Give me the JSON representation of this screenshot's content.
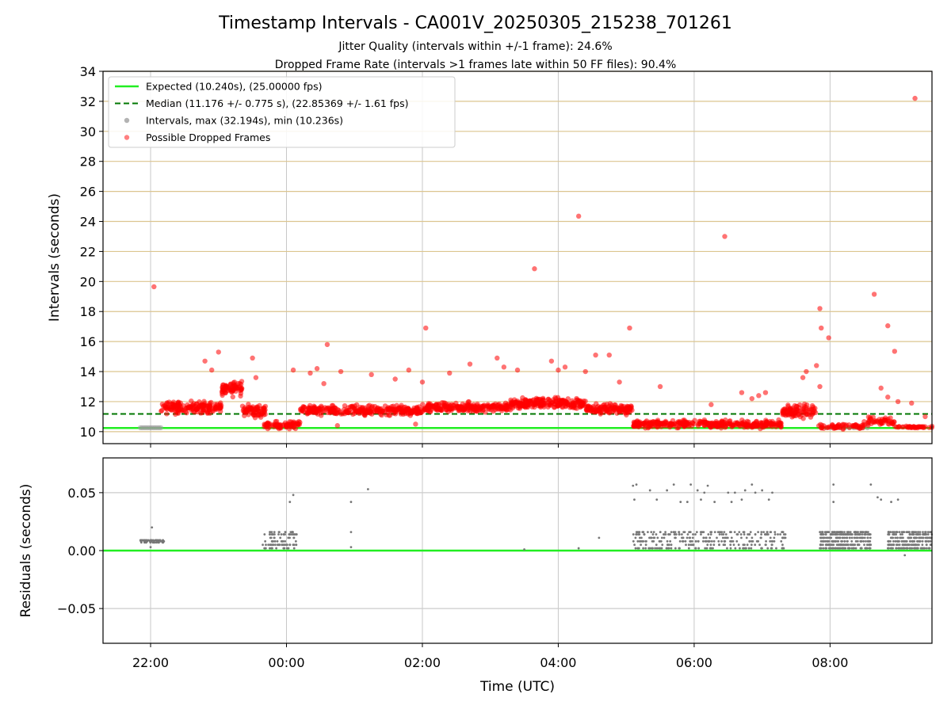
{
  "chart_data": {
    "type": "scatter",
    "title": "Timestamp Intervals - CA001V_20250305_215238_701261",
    "subtitles": [
      "Jitter Quality (intervals within +/-1 frame): 24.6%",
      "Dropped Frame Rate (intervals >1 frames late within 50 FF files): 90.4%"
    ],
    "xlabel": "Time (UTC)",
    "x_unit": "hours from 00:00 UTC (negative = previous evening)",
    "xlim": [
      -2.7,
      9.5
    ],
    "xticks": [
      {
        "value": -2,
        "label": "22:00"
      },
      {
        "value": 0,
        "label": "00:00"
      },
      {
        "value": 2,
        "label": "02:00"
      },
      {
        "value": 4,
        "label": "04:00"
      },
      {
        "value": 6,
        "label": "06:00"
      },
      {
        "value": 8,
        "label": "08:00"
      }
    ],
    "panels": [
      {
        "id": "intervals",
        "ylabel": "Intervals (seconds)",
        "ylim": [
          9.2,
          34
        ],
        "yticks": [
          10,
          12,
          14,
          16,
          18,
          20,
          22,
          24,
          26,
          28,
          30,
          32,
          34
        ],
        "yticklabels": [
          "10",
          "12",
          "14",
          "16",
          "18",
          "20",
          "22",
          "24",
          "26",
          "28",
          "30",
          "32",
          "34"
        ],
        "grid_color": "#dcc58f",
        "legend": {
          "placement": "top-left",
          "entries": [
            {
              "label": "Expected (10.240s), (25.00000 fps)",
              "style": "line",
              "color": "#22ee22"
            },
            {
              "label": "Median (11.176 +/- 0.775 s), (22.85369 +/- 1.61 fps)",
              "style": "dashed",
              "color": "#007700"
            },
            {
              "label": "Intervals, max (32.194s), min (10.236s)",
              "style": "dot",
              "color": "#999999"
            },
            {
              "label": "Possible Dropped Frames",
              "style": "dot",
              "color": "#ff5555"
            }
          ]
        },
        "expected_line": 10.24,
        "median_line": 11.176,
        "series": [
          {
            "name": "Intervals, max (32.194s), min (10.236s)",
            "color": "#999999",
            "segments": [
              {
                "x_start": -2.15,
                "x_end": -1.85,
                "y": 10.26,
                "count": 12
              },
              {
                "x_start": 7.95,
                "x_end": 8.55,
                "y": 10.26,
                "count": 10
              }
            ]
          },
          {
            "name": "Possible Dropped Frames",
            "color": "#ff0000",
            "clusters": [
              {
                "x_start": -1.85,
                "x_end": -0.95,
                "y_center": 11.6,
                "spread": 0.55,
                "count": 170
              },
              {
                "x_start": -0.95,
                "x_end": -0.65,
                "y_center": 12.9,
                "spread": 0.7,
                "count": 70
              },
              {
                "x_start": -0.65,
                "x_end": -0.3,
                "y_center": 11.4,
                "spread": 0.55,
                "count": 70
              },
              {
                "x_start": -0.35,
                "x_end": 0.2,
                "y_center": 10.45,
                "spread": 0.35,
                "count": 80
              },
              {
                "x_start": 0.2,
                "x_end": 2.0,
                "y_center": 11.4,
                "spread": 0.45,
                "count": 300
              },
              {
                "x_start": 2.0,
                "x_end": 3.3,
                "y_center": 11.6,
                "spread": 0.45,
                "count": 230
              },
              {
                "x_start": 3.3,
                "x_end": 4.4,
                "y_center": 11.9,
                "spread": 0.5,
                "count": 220
              },
              {
                "x_start": 4.4,
                "x_end": 5.1,
                "y_center": 11.5,
                "spread": 0.5,
                "count": 130
              },
              {
                "x_start": 5.1,
                "x_end": 7.3,
                "y_center": 10.5,
                "spread": 0.35,
                "count": 360
              },
              {
                "x_start": 7.3,
                "x_end": 7.8,
                "y_center": 11.4,
                "spread": 0.6,
                "count": 90
              },
              {
                "x_start": 7.8,
                "x_end": 8.5,
                "y_center": 10.35,
                "spread": 0.25,
                "count": 60
              },
              {
                "x_start": 8.5,
                "x_end": 8.95,
                "y_center": 10.7,
                "spread": 0.4,
                "count": 50
              },
              {
                "x_start": 8.95,
                "x_end": 9.5,
                "y_center": 10.3,
                "spread": 0.1,
                "count": 40
              }
            ],
            "scatter_points": [
              [
                -1.2,
                14.7
              ],
              [
                -1.0,
                15.3
              ],
              [
                -1.1,
                14.1
              ],
              [
                -0.5,
                14.9
              ],
              [
                -0.45,
                13.6
              ],
              [
                0.1,
                14.1
              ],
              [
                0.35,
                13.9
              ],
              [
                0.45,
                14.2
              ],
              [
                0.55,
                13.2
              ],
              [
                0.6,
                15.8
              ],
              [
                0.8,
                14.0
              ],
              [
                1.25,
                13.8
              ],
              [
                1.6,
                13.5
              ],
              [
                1.8,
                14.1
              ],
              [
                2.0,
                13.3
              ],
              [
                2.4,
                13.9
              ],
              [
                2.7,
                14.5
              ],
              [
                3.1,
                14.9
              ],
              [
                3.2,
                14.3
              ],
              [
                3.4,
                14.1
              ],
              [
                3.9,
                14.7
              ],
              [
                4.0,
                14.1
              ],
              [
                4.1,
                14.3
              ],
              [
                4.4,
                14.0
              ],
              [
                4.55,
                15.1
              ],
              [
                4.75,
                15.1
              ],
              [
                4.9,
                13.3
              ],
              [
                5.5,
                13.0
              ],
              [
                6.25,
                11.8
              ],
              [
                6.7,
                12.6
              ],
              [
                6.85,
                12.2
              ],
              [
                6.95,
                12.4
              ],
              [
                7.05,
                12.6
              ],
              [
                7.6,
                13.6
              ],
              [
                7.65,
                14.0
              ],
              [
                7.8,
                14.4
              ],
              [
                7.85,
                13.0
              ],
              [
                8.75,
                12.9
              ],
              [
                8.85,
                12.3
              ],
              [
                9.0,
                12.0
              ],
              [
                9.2,
                11.9
              ],
              [
                9.4,
                11.0
              ],
              [
                0.75,
                10.4
              ],
              [
                1.9,
                10.5
              ]
            ],
            "outliers": [
              [
                -1.95,
                19.65
              ],
              [
                2.05,
                16.9
              ],
              [
                3.65,
                20.85
              ],
              [
                4.3,
                24.35
              ],
              [
                5.05,
                16.9
              ],
              [
                6.45,
                23.0
              ],
              [
                7.85,
                18.2
              ],
              [
                7.87,
                16.9
              ],
              [
                7.98,
                16.25
              ],
              [
                8.65,
                19.15
              ],
              [
                8.85,
                17.05
              ],
              [
                8.95,
                15.35
              ],
              [
                9.25,
                32.2
              ]
            ]
          }
        ]
      },
      {
        "id": "residuals",
        "ylabel": "Residuals (seconds)",
        "ylim": [
          -0.08,
          0.08
        ],
        "yticks": [
          -0.05,
          0.0,
          0.05
        ],
        "yticklabels": [
          "−0.05",
          "0.00",
          "0.05"
        ],
        "grid_color": "#cccccc",
        "zero_line_color": "#22ee22",
        "series": [
          {
            "name": "Residuals",
            "color": "#777777",
            "clusters": [
              {
                "x_start": -2.15,
                "x_end": -1.8,
                "levels": [
                  0.007,
                  0.008,
                  0.009
                ],
                "count": 60
              },
              {
                "x_start": -0.35,
                "x_end": 0.15,
                "levels": [
                  0.002,
                  0.005,
                  0.008,
                  0.011,
                  0.014,
                  0.016
                ],
                "count": 90
              },
              {
                "x_start": 5.1,
                "x_end": 7.35,
                "levels": [
                  0.002,
                  0.005,
                  0.008,
                  0.011,
                  0.014,
                  0.016
                ],
                "count": 300
              },
              {
                "x_start": 7.85,
                "x_end": 8.6,
                "levels": [
                  0.002,
                  0.005,
                  0.008,
                  0.011,
                  0.014,
                  0.016
                ],
                "count": 300
              },
              {
                "x_start": 8.85,
                "x_end": 9.5,
                "levels": [
                  0.002,
                  0.005,
                  0.008,
                  0.011,
                  0.014,
                  0.016
                ],
                "count": 240
              }
            ],
            "points": [
              [
                -1.98,
                0.02
              ],
              [
                -2.0,
                0.003
              ],
              [
                0.05,
                0.042
              ],
              [
                0.1,
                0.048
              ],
              [
                0.95,
                0.042
              ],
              [
                0.95,
                0.016
              ],
              [
                0.95,
                0.003
              ],
              [
                1.2,
                0.053
              ],
              [
                3.5,
                0.001
              ],
              [
                4.3,
                0.002
              ],
              [
                4.6,
                0.011
              ],
              [
                5.1,
                0.056
              ],
              [
                5.12,
                0.044
              ],
              [
                5.15,
                0.057
              ],
              [
                5.35,
                0.052
              ],
              [
                5.45,
                0.044
              ],
              [
                5.7,
                0.057
              ],
              [
                5.6,
                0.052
              ],
              [
                5.8,
                0.042
              ],
              [
                5.9,
                0.042
              ],
              [
                5.95,
                0.057
              ],
              [
                6.05,
                0.052
              ],
              [
                6.1,
                0.044
              ],
              [
                6.15,
                0.05
              ],
              [
                6.2,
                0.056
              ],
              [
                6.3,
                0.042
              ],
              [
                6.5,
                0.05
              ],
              [
                6.55,
                0.042
              ],
              [
                6.6,
                0.05
              ],
              [
                6.7,
                0.044
              ],
              [
                6.75,
                0.052
              ],
              [
                6.85,
                0.057
              ],
              [
                6.9,
                0.05
              ],
              [
                7.0,
                0.052
              ],
              [
                7.1,
                0.044
              ],
              [
                7.15,
                0.05
              ],
              [
                8.05,
                0.057
              ],
              [
                8.05,
                0.042
              ],
              [
                8.6,
                0.057
              ],
              [
                8.7,
                0.046
              ],
              [
                8.75,
                0.044
              ],
              [
                8.9,
                0.042
              ],
              [
                9.0,
                0.044
              ],
              [
                9.1,
                -0.004
              ]
            ]
          }
        ]
      }
    ]
  }
}
